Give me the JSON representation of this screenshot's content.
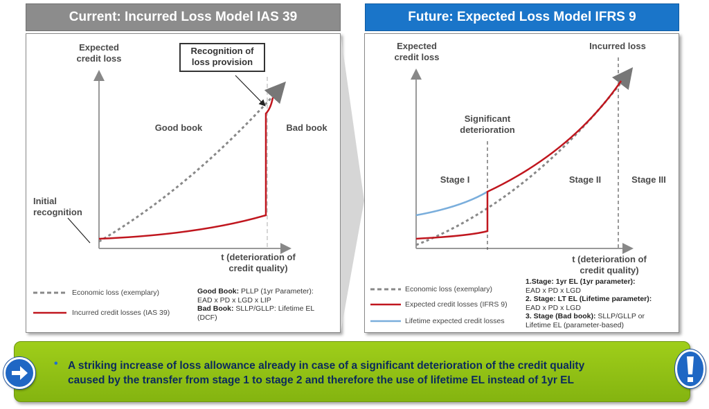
{
  "left": {
    "header": "Current: Incurred Loss Model IAS 39",
    "y_axis_label_line1": "Expected",
    "y_axis_label_line2": "credit loss",
    "callout_line1": "Recognition of",
    "callout_line2": "loss provision",
    "good_book": "Good book",
    "bad_book": "Bad book",
    "initial_line1": "Initial",
    "initial_line2": "recognition",
    "x_axis_label_line1": "t (deterioration of",
    "x_axis_label_line2": "credit quality)",
    "legend": [
      {
        "label": "Economic loss (exemplary)",
        "color": "#888888",
        "style": "dashed"
      },
      {
        "label": "Incurred credit losses  (IAS 39)",
        "color": "#c0161e",
        "style": "solid"
      }
    ],
    "formula": {
      "good_title": "Good Book:",
      "good_text": " PLLP (1yr Parameter):",
      "good_line2": "EAD x PD x LGD x LIP",
      "bad_title": "Bad Book:",
      "bad_text": " SLLP/GLLP:  Lifetime EL",
      "bad_line2": "(DCF)"
    }
  },
  "right": {
    "header": "Future: Expected Loss Model IFRS 9",
    "y_axis_label_line1": "Expected",
    "y_axis_label_line2": "credit loss",
    "incurred_loss": "Incurred loss",
    "significant_line1": "Significant",
    "significant_line2": "deterioration",
    "stage1": "Stage I",
    "stage2": "Stage II",
    "stage3": "Stage III",
    "x_axis_label_line1": "t (deterioration of",
    "x_axis_label_line2": "credit quality)",
    "legend": [
      {
        "label": "Economic loss (exemplary)",
        "color": "#888888",
        "style": "dashed"
      },
      {
        "label": "Expected credit losses (IFRS 9)",
        "color": "#c0161e",
        "style": "solid"
      },
      {
        "label": "Lifetime expected credit losses",
        "color": "#7aaedc",
        "style": "solid"
      }
    ],
    "formula": {
      "s1_title": "1.Stage: 1yr EL (1yr parameter):",
      "s1_line2": "EAD x PD x LGD",
      "s2_title": "2. Stage: LT EL (Lifetime parameter):",
      "s2_line2": "EAD x PD x LGD",
      "s3_title": "3. Stage (Bad book):",
      "s3_text": " SLLP/GLLP or",
      "s3_line2": "Lifetime EL (parameter-based)"
    }
  },
  "banner": {
    "bullet": "•",
    "text_line1": "A striking increase of loss allowance already in case of a significant deterioration of the credit quality",
    "text_line2": "caused by the transfer from stage 1 to stage 2 and therefore the use of lifetime EL instead of 1yr EL"
  },
  "icons": {
    "arrow": "arrow-right-icon",
    "exclamation": "exclamation-icon"
  }
}
